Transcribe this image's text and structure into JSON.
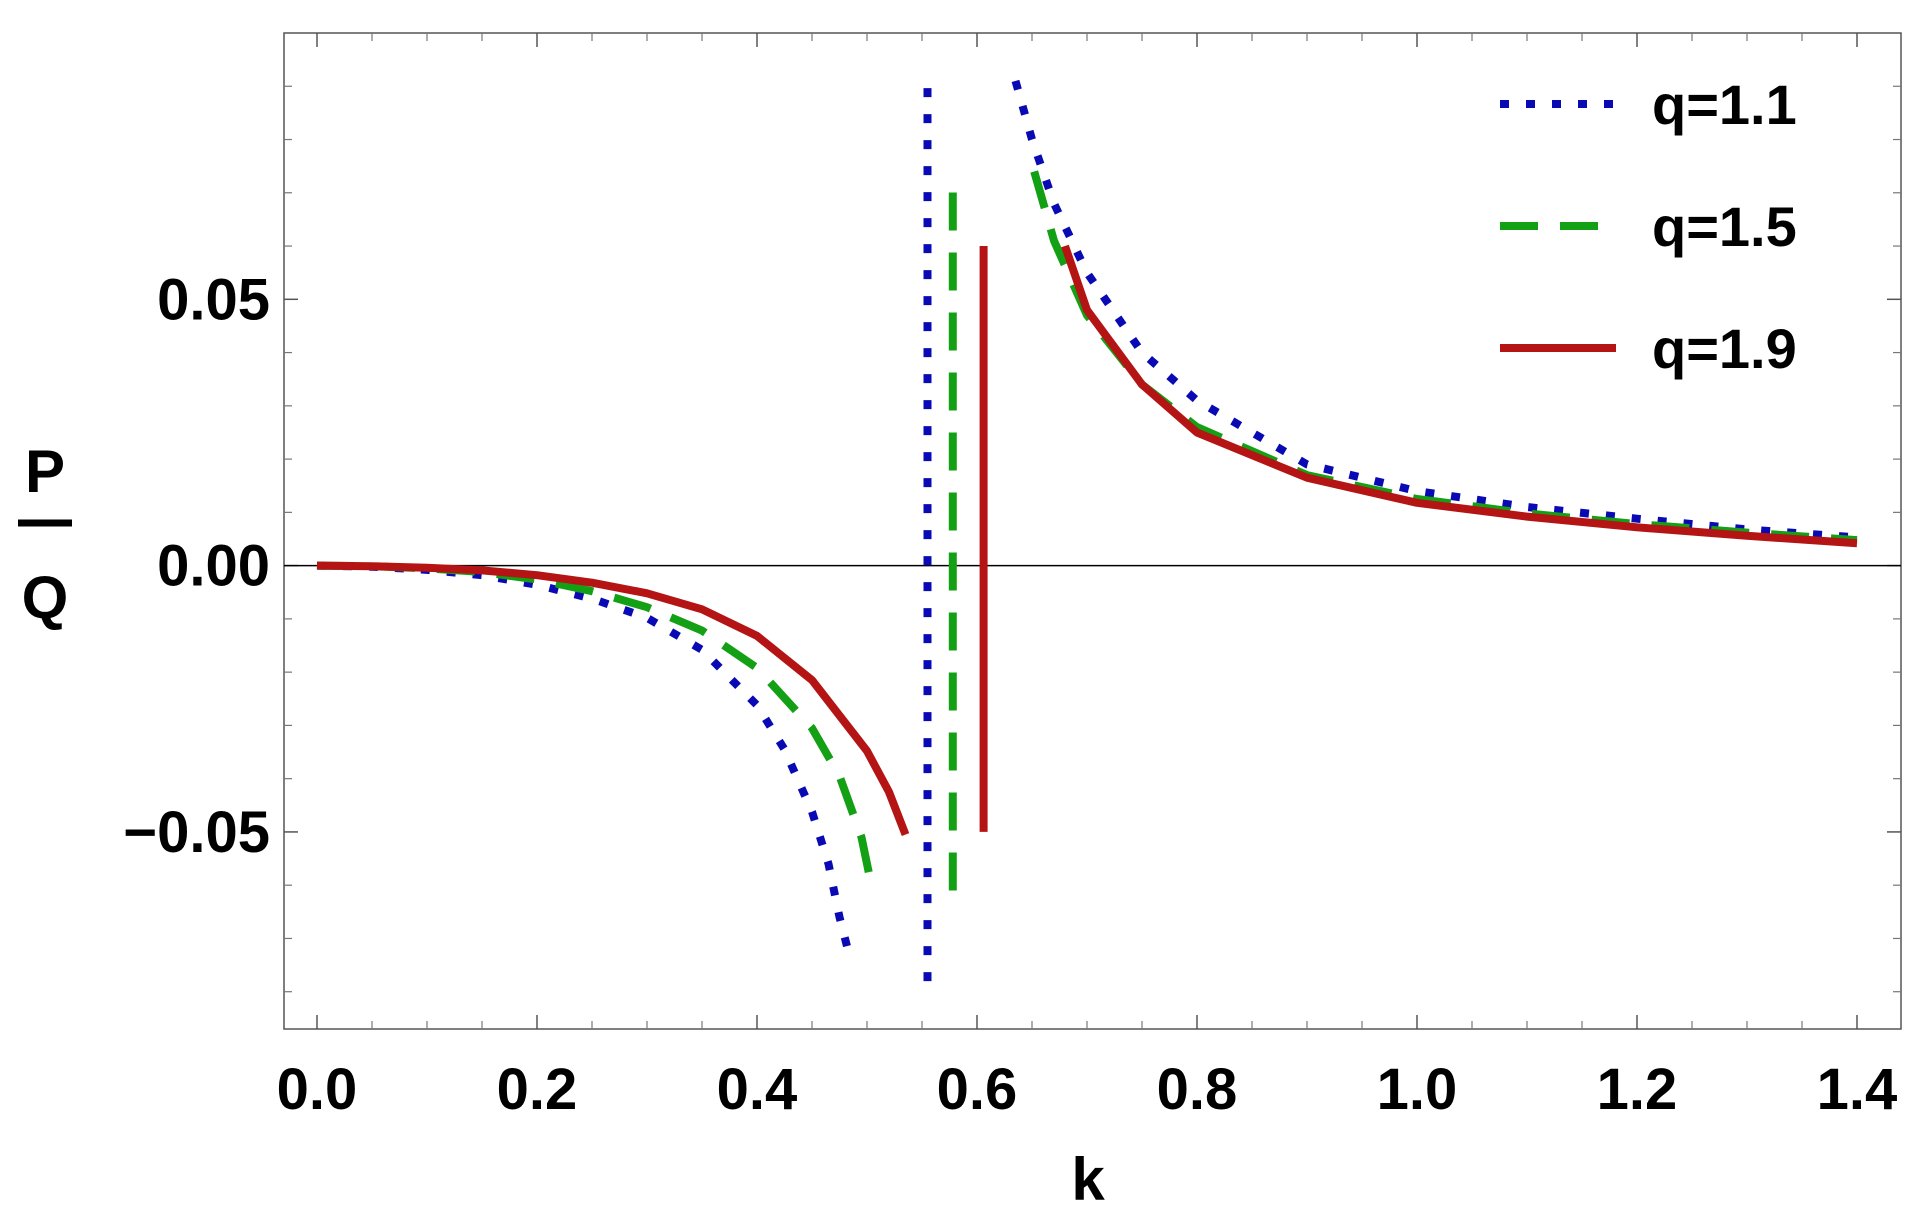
{
  "chart_data": {
    "type": "line",
    "title": "",
    "xlabel": "k",
    "ylabel": {
      "numerator": "P",
      "denominator": "Q"
    },
    "xlim": [
      -0.03,
      1.44
    ],
    "ylim": [
      -0.087,
      0.1
    ],
    "x_ticks": [
      0.0,
      0.2,
      0.4,
      0.6,
      0.8,
      1.0,
      1.2,
      1.4
    ],
    "x_tick_labels": [
      "0.0",
      "0.2",
      "0.4",
      "0.6",
      "0.8",
      "1.0",
      "1.2",
      "1.4"
    ],
    "y_ticks": [
      -0.05,
      0.0,
      0.05
    ],
    "y_tick_labels": [
      "−0.05",
      "0.00",
      "0.05"
    ],
    "zero_line": true,
    "grid": false,
    "legend_position": "top-right",
    "series": [
      {
        "name": "q=1.1",
        "color": "#0a0ab4",
        "style": "dotted",
        "segments": [
          [
            [
              0.0,
              0.0
            ],
            [
              0.05,
              -0.0002
            ],
            [
              0.1,
              -0.0008
            ],
            [
              0.15,
              -0.0018
            ],
            [
              0.2,
              -0.0036
            ],
            [
              0.25,
              -0.0062
            ],
            [
              0.3,
              -0.0098
            ],
            [
              0.35,
              -0.0158
            ],
            [
              0.4,
              -0.0262
            ],
            [
              0.425,
              -0.0345
            ],
            [
              0.45,
              -0.0462
            ],
            [
              0.465,
              -0.056
            ],
            [
              0.475,
              -0.066
            ],
            [
              0.485,
              -0.074
            ]
          ],
          [
            [
              0.555,
              -0.078
            ],
            [
              0.555,
              0.091
            ]
          ],
          [
            [
              0.635,
              0.091
            ],
            [
              0.65,
              0.08
            ],
            [
              0.67,
              0.068
            ],
            [
              0.7,
              0.055
            ],
            [
              0.75,
              0.04
            ],
            [
              0.8,
              0.031
            ],
            [
              0.9,
              0.019
            ],
            [
              1.0,
              0.014
            ],
            [
              1.1,
              0.011
            ],
            [
              1.2,
              0.0088
            ],
            [
              1.3,
              0.0068
            ],
            [
              1.4,
              0.0053
            ]
          ]
        ]
      },
      {
        "name": "q=1.5",
        "color": "#14a014",
        "style": "dashed",
        "segments": [
          [
            [
              0.0,
              0.0
            ],
            [
              0.05,
              -0.0001
            ],
            [
              0.1,
              -0.0005
            ],
            [
              0.15,
              -0.0012
            ],
            [
              0.2,
              -0.0026
            ],
            [
              0.25,
              -0.0048
            ],
            [
              0.3,
              -0.0078
            ],
            [
              0.35,
              -0.0122
            ],
            [
              0.4,
              -0.0192
            ],
            [
              0.45,
              -0.0305
            ],
            [
              0.475,
              -0.0395
            ],
            [
              0.495,
              -0.051
            ],
            [
              0.505,
              -0.061
            ]
          ],
          [
            [
              0.578,
              -0.061
            ],
            [
              0.578,
              0.074
            ]
          ],
          [
            [
              0.652,
              0.074
            ],
            [
              0.67,
              0.061
            ],
            [
              0.7,
              0.047
            ],
            [
              0.75,
              0.034
            ],
            [
              0.8,
              0.026
            ],
            [
              0.9,
              0.017
            ],
            [
              1.0,
              0.0125
            ],
            [
              1.1,
              0.0098
            ],
            [
              1.2,
              0.0078
            ],
            [
              1.3,
              0.0062
            ],
            [
              1.4,
              0.0048
            ]
          ]
        ]
      },
      {
        "name": "q=1.9",
        "color": "#b41414",
        "style": "solid",
        "segments": [
          [
            [
              0.0,
              0.0
            ],
            [
              0.05,
              -0.0001
            ],
            [
              0.1,
              -0.0004
            ],
            [
              0.15,
              -0.0009
            ],
            [
              0.2,
              -0.0018
            ],
            [
              0.25,
              -0.0032
            ],
            [
              0.3,
              -0.0052
            ],
            [
              0.35,
              -0.0082
            ],
            [
              0.4,
              -0.0132
            ],
            [
              0.45,
              -0.0215
            ],
            [
              0.5,
              -0.0348
            ],
            [
              0.52,
              -0.0425
            ],
            [
              0.535,
              -0.0505
            ]
          ],
          [
            [
              0.606,
              -0.05
            ],
            [
              0.606,
              0.06
            ]
          ],
          [
            [
              0.68,
              0.06
            ],
            [
              0.7,
              0.048
            ],
            [
              0.75,
              0.034
            ],
            [
              0.8,
              0.025
            ],
            [
              0.9,
              0.0165
            ],
            [
              1.0,
              0.0118
            ],
            [
              1.1,
              0.0092
            ],
            [
              1.2,
              0.0072
            ],
            [
              1.3,
              0.0056
            ],
            [
              1.4,
              0.0042
            ]
          ]
        ]
      }
    ]
  }
}
